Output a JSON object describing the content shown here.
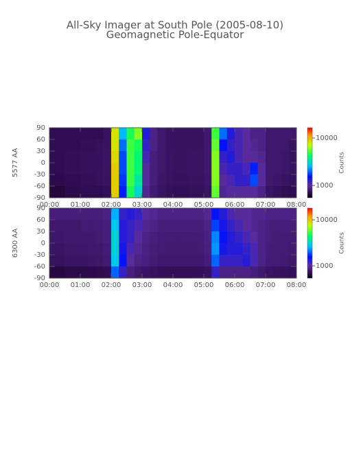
{
  "title": "All-Sky Imager at South Pole (2005-08-10)",
  "subtitle": "Geomagnetic Pole-Equator",
  "chart_data": [
    {
      "type": "heatmap",
      "ylabel": "5577 AA",
      "colorbar_label": "Counts",
      "x": [
        0.125,
        0.375,
        0.625,
        0.875,
        1.125,
        1.375,
        1.625,
        1.875,
        2.125,
        2.375,
        2.625,
        2.875,
        3.125,
        3.375,
        3.625,
        3.875,
        4.125,
        4.375,
        4.625,
        4.875,
        5.125,
        5.375,
        5.625,
        5.875,
        6.125,
        6.375,
        6.625,
        6.875,
        7.125,
        7.375,
        7.625,
        7.875
      ],
      "y": [
        75,
        45,
        15,
        -15,
        -45,
        -75
      ],
      "values": [
        [
          700,
          700,
          700,
          700,
          700,
          700,
          700,
          750,
          8000,
          2500,
          4500,
          6000,
          1300,
          900,
          800,
          750,
          750,
          750,
          750,
          750,
          800,
          5000,
          2000,
          1300,
          1100,
          1000,
          900,
          900,
          800,
          800,
          800,
          800
        ],
        [
          700,
          700,
          700,
          700,
          720,
          720,
          730,
          750,
          8000,
          2000,
          5000,
          4500,
          1200,
          900,
          800,
          750,
          750,
          750,
          750,
          750,
          800,
          5500,
          1500,
          1200,
          1100,
          1000,
          950,
          900,
          800,
          800,
          800,
          750
        ],
        [
          700,
          700,
          720,
          720,
          730,
          730,
          740,
          760,
          8500,
          1800,
          5000,
          4000,
          1100,
          850,
          800,
          760,
          750,
          750,
          760,
          760,
          800,
          6000,
          1200,
          1300,
          1100,
          1000,
          1000,
          950,
          800,
          800,
          780,
          750
        ],
        [
          700,
          700,
          720,
          720,
          730,
          730,
          740,
          760,
          9000,
          1800,
          5000,
          4000,
          1000,
          850,
          800,
          760,
          750,
          750,
          760,
          760,
          800,
          6000,
          1100,
          1200,
          1200,
          1100,
          1600,
          1000,
          800,
          800,
          780,
          750
        ],
        [
          680,
          680,
          700,
          700,
          720,
          720,
          730,
          750,
          9000,
          1700,
          5000,
          3500,
          1000,
          850,
          780,
          750,
          740,
          740,
          750,
          750,
          780,
          6000,
          1000,
          1100,
          1200,
          1200,
          1800,
          1000,
          800,
          780,
          760,
          740
        ],
        [
          650,
          650,
          680,
          680,
          700,
          700,
          700,
          720,
          9000,
          1600,
          4500,
          3000,
          950,
          820,
          760,
          730,
          720,
          720,
          730,
          730,
          760,
          5500,
          950,
          1000,
          1000,
          1000,
          1000,
          900,
          760,
          740,
          720,
          700
        ]
      ],
      "xlim": [
        0,
        8
      ],
      "xticks": [
        {
          "value": 0,
          "label": "00:00"
        },
        {
          "value": 1,
          "label": "01:00"
        },
        {
          "value": 2,
          "label": "02:00"
        },
        {
          "value": 3,
          "label": "03:00"
        },
        {
          "value": 4,
          "label": "04:00"
        },
        {
          "value": 5,
          "label": "05:00"
        },
        {
          "value": 6,
          "label": "06:00"
        },
        {
          "value": 7,
          "label": "07:00"
        },
        {
          "value": 8,
          "label": "08:00"
        }
      ],
      "ylim": [
        -90,
        90
      ],
      "yticks": [
        -90,
        -60,
        -30,
        0,
        30,
        60,
        90
      ],
      "clim": [
        550,
        16500
      ],
      "cticks": [
        1000,
        10000
      ],
      "color_scale": "log"
    },
    {
      "type": "heatmap",
      "ylabel": "6300 AA",
      "colorbar_label": "Counts",
      "x": [
        0.125,
        0.375,
        0.625,
        0.875,
        1.125,
        1.375,
        1.625,
        1.875,
        2.125,
        2.375,
        2.625,
        2.875,
        3.125,
        3.375,
        3.625,
        3.875,
        4.125,
        4.375,
        4.625,
        4.875,
        5.125,
        5.375,
        5.625,
        5.875,
        6.125,
        6.375,
        6.625,
        6.875,
        7.125,
        7.375,
        7.625,
        7.875
      ],
      "y": [
        75,
        45,
        15,
        -15,
        -45,
        -75
      ],
      "values": [
        [
          850,
          850,
          850,
          850,
          850,
          850,
          850,
          880,
          2500,
          1200,
          1300,
          1200,
          1000,
          950,
          900,
          900,
          900,
          900,
          900,
          900,
          950,
          1500,
          1300,
          1100,
          1000,
          1000,
          950,
          950,
          900,
          900,
          900,
          900
        ],
        [
          800,
          800,
          800,
          800,
          820,
          820,
          830,
          850,
          2800,
          1300,
          1200,
          1100,
          950,
          900,
          850,
          850,
          850,
          850,
          850,
          850,
          900,
          1800,
          1400,
          1200,
          1100,
          1000,
          950,
          900,
          850,
          850,
          850,
          850
        ],
        [
          780,
          780,
          800,
          800,
          800,
          800,
          820,
          850,
          3000,
          1300,
          1200,
          1000,
          900,
          850,
          830,
          820,
          820,
          820,
          820,
          830,
          880,
          2200,
          1500,
          1300,
          1200,
          1100,
          1000,
          900,
          850,
          840,
          830,
          820
        ],
        [
          760,
          760,
          780,
          780,
          780,
          790,
          800,
          830,
          3000,
          1400,
          1100,
          950,
          880,
          840,
          820,
          810,
          810,
          810,
          810,
          820,
          860,
          2300,
          1400,
          1300,
          1300,
          1200,
          1100,
          900,
          840,
          830,
          820,
          810
        ],
        [
          740,
          740,
          760,
          760,
          760,
          770,
          780,
          810,
          2800,
          1500,
          1000,
          900,
          860,
          820,
          800,
          790,
          790,
          790,
          790,
          800,
          840,
          2000,
          1200,
          1200,
          1200,
          1300,
          1100,
          900,
          830,
          820,
          810,
          800
        ],
        [
          650,
          650,
          660,
          660,
          660,
          670,
          680,
          700,
          2000,
          1200,
          850,
          800,
          760,
          740,
          720,
          710,
          710,
          710,
          710,
          720,
          740,
          1200,
          900,
          900,
          900,
          900,
          850,
          800,
          750,
          740,
          730,
          720
        ]
      ],
      "xlim": [
        0,
        8
      ],
      "xticks": [
        {
          "value": 0,
          "label": "00:00"
        },
        {
          "value": 1,
          "label": "01:00"
        },
        {
          "value": 2,
          "label": "02:00"
        },
        {
          "value": 3,
          "label": "03:00"
        },
        {
          "value": 4,
          "label": "04:00"
        },
        {
          "value": 5,
          "label": "05:00"
        },
        {
          "value": 6,
          "label": "06:00"
        },
        {
          "value": 7,
          "label": "07:00"
        },
        {
          "value": 8,
          "label": "08:00"
        }
      ],
      "ylim": [
        -90,
        90
      ],
      "yticks": [
        -90,
        -60,
        -30,
        0,
        30,
        60,
        90
      ],
      "clim": [
        540,
        18000
      ],
      "cticks": [
        1000,
        10000
      ],
      "color_scale": "log"
    }
  ]
}
